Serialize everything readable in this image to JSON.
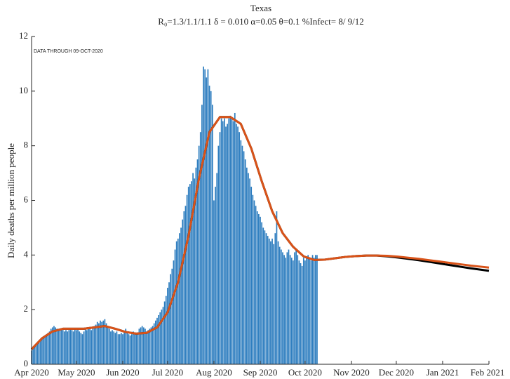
{
  "chart_data": {
    "type": "bar-line",
    "title": "Texas",
    "subtitle": "R₀=1.3/1.1/1.1  δ = 0.010  α=0.05  θ=0.1  %Infect= 8/ 9/12",
    "annotation": "DATA THROUGH 09-OCT-2020",
    "ylabel": "Daily deaths per million people",
    "xlim": [
      0,
      306
    ],
    "ylim": [
      0,
      12
    ],
    "yticks": [
      0,
      2,
      4,
      6,
      8,
      10,
      12
    ],
    "xticks": [
      {
        "value": 0,
        "label": "Apr 2020"
      },
      {
        "value": 30,
        "label": "May 2020"
      },
      {
        "value": 61,
        "label": "Jun 2020"
      },
      {
        "value": 91,
        "label": "Jul 2020"
      },
      {
        "value": 122,
        "label": "Aug 2020"
      },
      {
        "value": 153,
        "label": "Sep 2020"
      },
      {
        "value": 183,
        "label": "Oct 2020"
      },
      {
        "value": 214,
        "label": "Nov 2020"
      },
      {
        "value": 244,
        "label": "Dec 2020"
      },
      {
        "value": 275,
        "label": "Jan 2021"
      },
      {
        "value": 306,
        "label": "Feb 2021"
      }
    ],
    "grid": false,
    "series": [
      {
        "kind": "bar",
        "color": "#2d7dbf",
        "x": [
          0,
          1,
          2,
          3,
          4,
          5,
          6,
          7,
          8,
          9,
          10,
          11,
          12,
          13,
          14,
          15,
          16,
          17,
          18,
          19,
          20,
          21,
          22,
          23,
          24,
          25,
          26,
          27,
          28,
          29,
          30,
          31,
          32,
          33,
          34,
          35,
          36,
          37,
          38,
          39,
          40,
          41,
          42,
          43,
          44,
          45,
          46,
          47,
          48,
          49,
          50,
          51,
          52,
          53,
          54,
          55,
          56,
          57,
          58,
          59,
          60,
          61,
          62,
          63,
          64,
          65,
          66,
          67,
          68,
          69,
          70,
          71,
          72,
          73,
          74,
          75,
          76,
          77,
          78,
          79,
          80,
          81,
          82,
          83,
          84,
          85,
          86,
          87,
          88,
          89,
          90,
          91,
          92,
          93,
          94,
          95,
          96,
          97,
          98,
          99,
          100,
          101,
          102,
          103,
          104,
          105,
          106,
          107,
          108,
          109,
          110,
          111,
          112,
          113,
          114,
          115,
          116,
          117,
          118,
          119,
          120,
          121,
          122,
          123,
          124,
          125,
          126,
          127,
          128,
          129,
          130,
          131,
          132,
          133,
          134,
          135,
          136,
          137,
          138,
          139,
          140,
          141,
          142,
          143,
          144,
          145,
          146,
          147,
          148,
          149,
          150,
          151,
          152,
          153,
          154,
          155,
          156,
          157,
          158,
          159,
          160,
          161,
          162,
          163,
          164,
          165,
          166,
          167,
          168,
          169,
          170,
          171,
          172,
          173,
          174,
          175,
          176,
          177,
          178,
          179,
          180,
          181,
          182,
          183,
          184,
          185,
          186,
          187,
          188,
          189,
          190,
          191
        ],
        "values": [
          0.5,
          0.6,
          0.7,
          0.75,
          0.8,
          0.85,
          0.9,
          0.95,
          1.0,
          1.05,
          1.1,
          1.15,
          1.2,
          1.3,
          1.35,
          1.4,
          1.35,
          1.3,
          1.3,
          1.25,
          1.3,
          1.25,
          1.2,
          1.25,
          1.2,
          1.25,
          1.3,
          1.25,
          1.2,
          1.3,
          1.25,
          1.3,
          1.2,
          1.15,
          1.1,
          1.2,
          1.3,
          1.25,
          1.3,
          1.3,
          1.25,
          1.3,
          1.4,
          1.45,
          1.55,
          1.5,
          1.6,
          1.55,
          1.6,
          1.65,
          1.5,
          1.4,
          1.3,
          1.2,
          1.25,
          1.2,
          1.15,
          1.2,
          1.1,
          1.1,
          1.15,
          1.1,
          1.2,
          1.3,
          1.15,
          1.1,
          1.05,
          1.1,
          1.2,
          1.1,
          1.15,
          1.1,
          1.3,
          1.35,
          1.4,
          1.35,
          1.3,
          1.2,
          1.25,
          1.3,
          1.35,
          1.4,
          1.5,
          1.6,
          1.7,
          1.8,
          1.9,
          2.0,
          2.1,
          2.3,
          2.5,
          2.8,
          3.0,
          3.3,
          3.5,
          3.8,
          4.2,
          4.5,
          4.6,
          4.8,
          5.0,
          5.3,
          5.6,
          5.8,
          6.2,
          6.5,
          6.6,
          6.7,
          7.0,
          6.8,
          7.2,
          7.5,
          8.0,
          8.5,
          9.5,
          10.9,
          10.8,
          10.5,
          10.8,
          10.2,
          10.0,
          9.5,
          6.0,
          6.5,
          7.0,
          8.0,
          8.5,
          9.0,
          8.9,
          9.0,
          8.7,
          8.8,
          9.0,
          9.1,
          9.0,
          8.9,
          9.2,
          8.8,
          8.7,
          8.5,
          8.2,
          8.0,
          7.8,
          7.5,
          7.2,
          7.0,
          6.8,
          6.5,
          6.2,
          6.0,
          5.8,
          5.6,
          5.5,
          5.4,
          5.2,
          5.0,
          4.9,
          4.8,
          4.7,
          4.6,
          4.5,
          4.6,
          4.4,
          4.8,
          5.6,
          4.5,
          4.3,
          4.2,
          4.1,
          4.0,
          3.9,
          4.1,
          4.2,
          4.0,
          3.9,
          3.8,
          4.1,
          4.2,
          4.0,
          3.8,
          3.7,
          3.6,
          3.9,
          3.8,
          3.9,
          4.0,
          3.9,
          3.8,
          4.0,
          3.9,
          4.0,
          4.0
        ]
      },
      {
        "kind": "line",
        "color": "#000000",
        "x": [
          0,
          7,
          14,
          21,
          28,
          35,
          42,
          49,
          56,
          63,
          70,
          77,
          84,
          91,
          98,
          105,
          112,
          119,
          126,
          133,
          140,
          147,
          154,
          161,
          168,
          175,
          182,
          189,
          196,
          203,
          210,
          217,
          224,
          231,
          238,
          245,
          252,
          259,
          266,
          273,
          280,
          287,
          294,
          301,
          306
        ],
        "values": [
          0.55,
          0.95,
          1.2,
          1.3,
          1.3,
          1.3,
          1.35,
          1.4,
          1.3,
          1.18,
          1.12,
          1.15,
          1.35,
          1.9,
          3.0,
          4.7,
          6.8,
          8.5,
          9.05,
          9.05,
          8.8,
          7.9,
          6.7,
          5.6,
          4.8,
          4.3,
          3.95,
          3.82,
          3.83,
          3.88,
          3.93,
          3.96,
          3.98,
          3.98,
          3.95,
          3.91,
          3.86,
          3.81,
          3.75,
          3.69,
          3.63,
          3.57,
          3.51,
          3.46,
          3.42
        ]
      },
      {
        "kind": "line",
        "color": "#d95319",
        "x": [
          0,
          7,
          14,
          21,
          28,
          35,
          42,
          49,
          56,
          63,
          70,
          77,
          84,
          91,
          98,
          105,
          112,
          119,
          126,
          133,
          140,
          147,
          154,
          161,
          168,
          175,
          182,
          189,
          196,
          203,
          210,
          217,
          224,
          231,
          238,
          245,
          252,
          259,
          266,
          273,
          280,
          287,
          294,
          301,
          306
        ],
        "values": [
          0.55,
          0.95,
          1.2,
          1.3,
          1.3,
          1.3,
          1.35,
          1.4,
          1.3,
          1.18,
          1.12,
          1.15,
          1.35,
          1.9,
          3.0,
          4.7,
          6.8,
          8.5,
          9.05,
          9.05,
          8.8,
          7.9,
          6.7,
          5.6,
          4.8,
          4.3,
          3.95,
          3.82,
          3.83,
          3.88,
          3.93,
          3.96,
          3.98,
          3.98,
          3.97,
          3.94,
          3.9,
          3.86,
          3.81,
          3.76,
          3.71,
          3.66,
          3.61,
          3.57,
          3.54
        ]
      }
    ]
  }
}
